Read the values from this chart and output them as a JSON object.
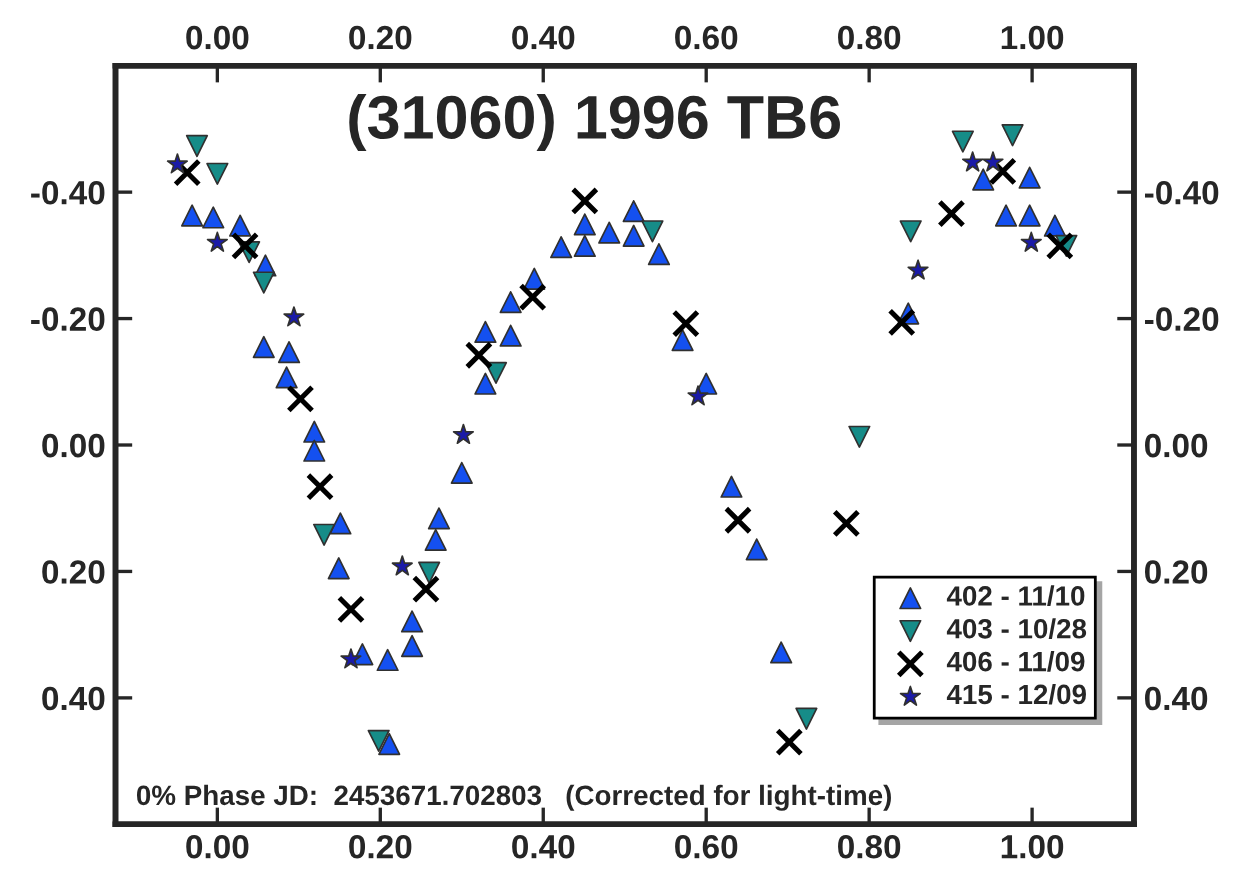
{
  "chart_data": {
    "type": "scatter",
    "title": "(31060) 1996 TB6",
    "annotations": [
      "0% Phase JD:  2453671.702803   (Corrected for light-time)"
    ],
    "xlim": [
      -0.125,
      1.125
    ],
    "xticks": [
      {
        "value": 0,
        "label": "0.00"
      },
      {
        "value": 0.2,
        "label": "0.20"
      },
      {
        "value": 0.4,
        "label": "0.40"
      },
      {
        "value": 0.6,
        "label": "0.60"
      },
      {
        "value": 0.8,
        "label": "0.80"
      },
      {
        "value": 1.0,
        "label": "1.00"
      }
    ],
    "x2lim": [
      -0.125,
      1.125
    ],
    "x2ticks": [
      {
        "value": 0,
        "label": "0.00"
      },
      {
        "value": 0.2,
        "label": "0.20"
      },
      {
        "value": 0.4,
        "label": "0.40"
      },
      {
        "value": 0.6,
        "label": "0.60"
      },
      {
        "value": 0.8,
        "label": "0.80"
      },
      {
        "value": 1.0,
        "label": "1.00"
      }
    ],
    "ylim": [
      0.6,
      -0.6
    ],
    "yticks": [
      {
        "value": -0.4,
        "label": "-0.40"
      },
      {
        "value": -0.2,
        "label": "-0.20"
      },
      {
        "value": 0,
        "label": "0.00"
      },
      {
        "value": 0.2,
        "label": "0.20"
      },
      {
        "value": 0.4,
        "label": "0.40"
      }
    ],
    "y2lim": [
      0.6,
      -0.6
    ],
    "y2ticks": [
      {
        "value": -0.4,
        "label": "-0.40"
      },
      {
        "value": -0.2,
        "label": "-0.20"
      },
      {
        "value": 0,
        "label": "0.00"
      },
      {
        "value": 0.2,
        "label": "0.20"
      },
      {
        "value": 0.4,
        "label": "0.40"
      }
    ],
    "grid": false,
    "legend": "bottom right",
    "series": [
      {
        "name": "402 - 11/10",
        "color": "#1450f0",
        "marker": "triangle",
        "x": [
          -0.031,
          -0.005,
          0.028,
          0.059,
          0.057,
          0.088,
          0.085,
          0.119,
          0.119,
          0.151,
          0.149,
          0.178,
          0.209,
          0.239,
          0.239,
          0.211,
          0.272,
          0.268,
          0.3,
          0.329,
          0.329,
          0.36,
          0.36,
          0.389,
          0.422,
          0.451,
          0.451,
          0.481,
          0.511,
          0.511,
          0.542,
          0.571,
          0.6,
          0.631,
          0.662,
          0.692,
          0.848,
          0.903,
          0.94,
          0.997,
          0.968,
          0.997,
          1.028
        ],
        "values": [
          -0.363,
          -0.36,
          -0.347,
          -0.284,
          -0.155,
          -0.147,
          -0.107,
          -0.021,
          0.009,
          0.124,
          0.195,
          0.331,
          0.34,
          0.279,
          0.318,
          0.473,
          0.116,
          0.15,
          0.044,
          -0.097,
          -0.179,
          -0.173,
          -0.226,
          -0.263,
          -0.313,
          -0.349,
          -0.315,
          -0.336,
          -0.37,
          -0.331,
          -0.302,
          -0.166,
          -0.097,
          0.066,
          0.165,
          0.328,
          -0.208,
          null,
          -0.42,
          -0.423,
          -0.363,
          -0.363,
          -0.347
        ]
      },
      {
        "name": "403 - 10/28",
        "color": "#168c88",
        "marker": "triangle_down",
        "x": [
          -0.025,
          0.0,
          0.039,
          0.057,
          0.131,
          0.198,
          0.26,
          0.342,
          0.534,
          0.723,
          0.788,
          0.851,
          0.915,
          0.976,
          1.042
        ],
        "values": [
          -0.473,
          -0.429,
          -0.305,
          -0.257,
          0.142,
          0.468,
          0.202,
          -0.114,
          -0.338,
          0.433,
          -0.013,
          -0.338,
          -0.48,
          -0.49,
          -0.315
        ]
      },
      {
        "name": "406 - 11/09",
        "color": "#000000",
        "marker": "cross",
        "x": [
          -0.037,
          0.034,
          0.102,
          0.126,
          0.164,
          0.256,
          0.321,
          0.387,
          0.451,
          0.575,
          0.639,
          0.702,
          0.772,
          0.84,
          0.901,
          0.964,
          1.034
        ],
        "values": [
          -0.431,
          -0.315,
          -0.073,
          0.066,
          0.26,
          0.228,
          -0.142,
          -0.234,
          -0.386,
          -0.192,
          0.119,
          0.47,
          0.124,
          -0.194,
          -0.366,
          -0.433,
          -0.315
        ]
      },
      {
        "name": "415 - 12/09",
        "color": "#1a1aa8",
        "marker": "star",
        "x": [
          -0.049,
          0.0,
          0.094,
          0.164,
          0.227,
          0.302,
          0.59,
          0.86,
          0.927,
          0.952,
          0.999
        ],
        "values": [
          -0.444,
          -0.32,
          -0.202,
          0.339,
          0.192,
          -0.016,
          -0.077,
          -0.276,
          -0.447,
          -0.447,
          -0.32
        ]
      }
    ]
  }
}
